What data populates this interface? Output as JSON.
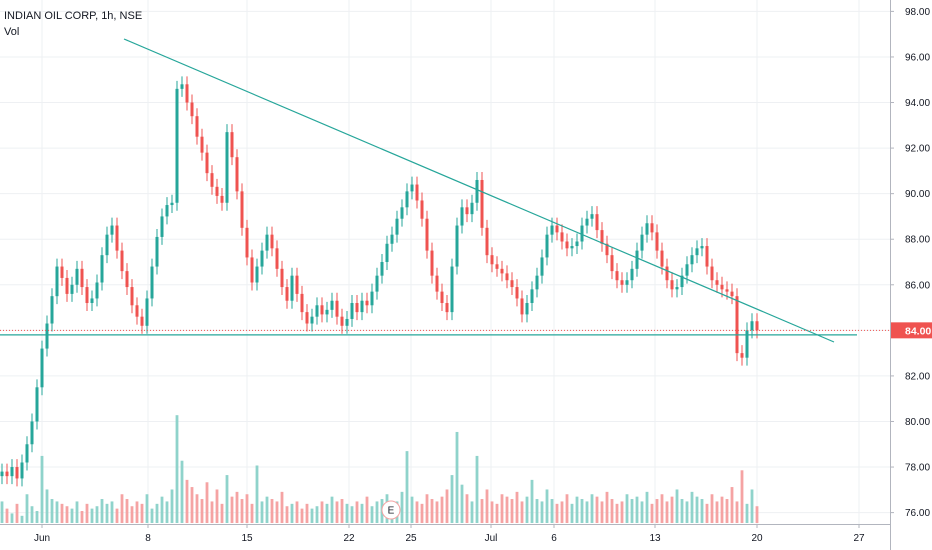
{
  "legend": {
    "symbol": "INDIAN OIL CORP, 1h, NSE",
    "vol_label": "Vol"
  },
  "colors": {
    "up": "#26a69a",
    "down": "#ef5350",
    "vol_up": "#8fd3cb",
    "vol_down": "#f5a3a3",
    "trend": "#26a69a",
    "grid": "#eef0f3",
    "axis": "#b2b5be",
    "last_price_bg": "#ef5350",
    "last_price_line": "#ef5350"
  },
  "chart_data": {
    "type": "candlestick",
    "title": "INDIAN OIL CORP, 1h, NSE",
    "ylim": [
      75.5,
      98.5
    ],
    "y_ticks": [
      "76.00",
      "78.00",
      "80.00",
      "82.00",
      "84.00",
      "86.00",
      "88.00",
      "90.00",
      "92.00",
      "94.00",
      "96.00",
      "98.00"
    ],
    "x_ticks": [
      "Jun",
      "8",
      "15",
      "22",
      "25",
      "Jul",
      "6",
      "13",
      "20",
      "27"
    ],
    "last_price": "84.00",
    "event_marker": "E",
    "closes": [
      77.8,
      77.6,
      78.0,
      77.5,
      78.2,
      79.0,
      80.0,
      81.5,
      83.2,
      84.3,
      85.5,
      86.8,
      86.3,
      85.6,
      86.0,
      86.7,
      85.9,
      85.2,
      85.4,
      86.1,
      87.3,
      88.2,
      88.6,
      87.5,
      86.6,
      85.9,
      85.1,
      84.6,
      84.2,
      85.4,
      86.8,
      88.1,
      89.0,
      89.5,
      89.6,
      94.6,
      94.8,
      94.0,
      93.4,
      92.5,
      91.8,
      90.9,
      90.3,
      89.9,
      89.6,
      92.7,
      91.6,
      90.1,
      88.5,
      87.2,
      86.1,
      86.8,
      87.5,
      88.2,
      87.6,
      86.7,
      85.9,
      85.3,
      86.4,
      85.6,
      84.8,
      84.3,
      84.6,
      85.1,
      84.7,
      84.9,
      85.3,
      84.6,
      84.2,
      84.5,
      85.2,
      84.8,
      85.3,
      85.1,
      85.7,
      86.4,
      87.0,
      87.8,
      88.2,
      88.9,
      89.4,
      90.1,
      90.4,
      89.7,
      88.9,
      87.5,
      86.4,
      85.7,
      85.2,
      84.8,
      86.8,
      88.6,
      89.4,
      89.1,
      89.6,
      90.6,
      88.5,
      87.3,
      86.9,
      86.7,
      86.5,
      86.2,
      85.9,
      85.4,
      84.7,
      85.2,
      85.8,
      86.4,
      87.2,
      88.2,
      88.6,
      88.3,
      87.9,
      87.6,
      87.7,
      87.9,
      88.6,
      88.9,
      89.1,
      88.4,
      87.8,
      87.3,
      86.6,
      86.2,
      86.0,
      86.2,
      86.7,
      87.5,
      88.2,
      88.7,
      88.3,
      87.5,
      86.8,
      86.2,
      85.8,
      85.9,
      86.4,
      86.9,
      87.3,
      87.6,
      87.7,
      86.8,
      86.2,
      86.0,
      85.8,
      85.7,
      85.5,
      83.0,
      82.8,
      84.0,
      84.4,
      84.0
    ],
    "volume_ylim": [
      0,
      48
    ],
    "volumes": [
      9,
      6,
      4,
      8,
      3,
      12,
      7,
      5,
      28,
      14,
      10,
      9,
      8,
      7,
      6,
      9,
      5,
      8,
      6,
      7,
      10,
      8,
      9,
      6,
      12,
      10,
      7,
      9,
      8,
      12,
      6,
      8,
      11,
      9,
      14,
      45,
      26,
      18,
      15,
      12,
      10,
      17,
      9,
      14,
      8,
      20,
      11,
      13,
      10,
      12,
      8,
      24,
      9,
      11,
      10,
      9,
      13,
      7,
      8,
      9,
      6,
      8,
      6,
      7,
      9,
      8,
      11,
      9,
      10,
      8,
      7,
      9,
      8,
      11,
      7,
      9,
      10,
      12,
      8,
      9,
      13,
      30,
      11,
      9,
      8,
      12,
      10,
      9,
      11,
      14,
      20,
      38,
      16,
      12,
      9,
      28,
      10,
      14,
      9,
      8,
      12,
      11,
      10,
      13,
      9,
      11,
      18,
      10,
      9,
      14,
      10,
      8,
      9,
      12,
      8,
      11,
      10,
      9,
      12,
      11,
      9,
      13,
      10,
      8,
      9,
      12,
      10,
      11,
      9,
      13,
      8,
      10,
      12,
      9,
      11,
      14,
      10,
      9,
      13,
      11,
      10,
      8,
      12,
      9,
      11,
      10,
      15,
      9,
      22,
      8,
      14,
      7
    ]
  }
}
